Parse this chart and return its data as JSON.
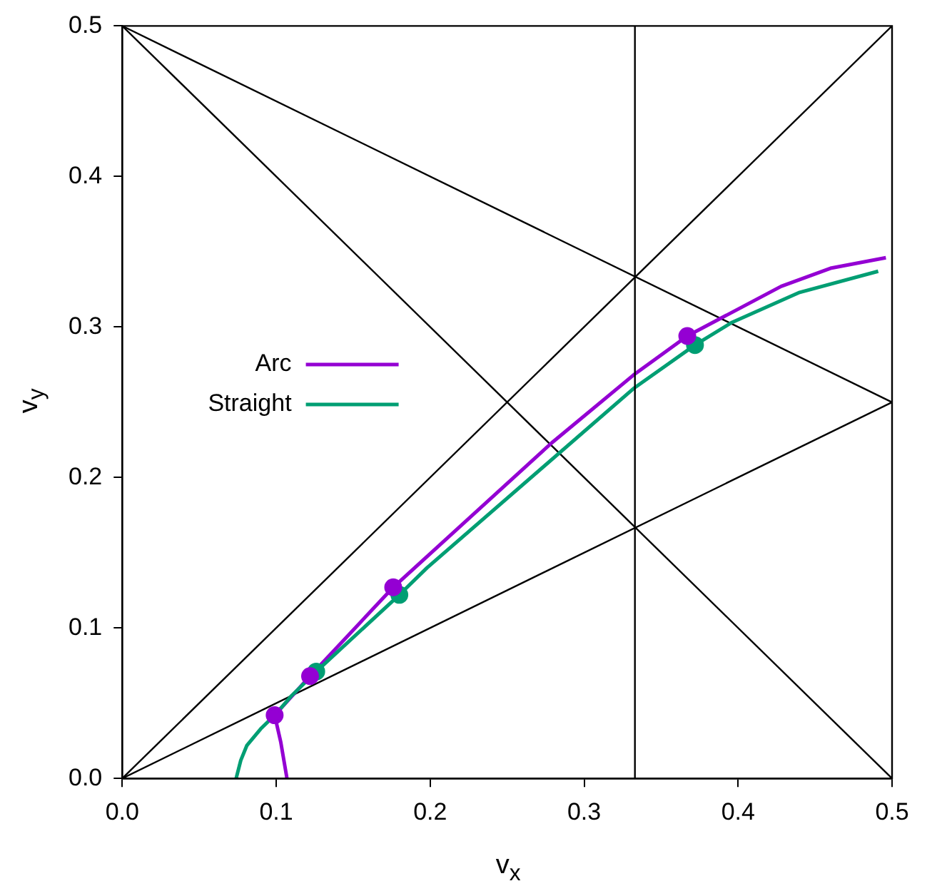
{
  "chart_data": {
    "type": "line",
    "xlabel": "v$_{x}$",
    "ylabel": "v$_{y}$",
    "xlim": [
      0,
      0.5
    ],
    "ylim": [
      0,
      0.5
    ],
    "xticks": [
      {
        "value": 0,
        "label": "0.0"
      },
      {
        "value": 0.1,
        "label": "0.1"
      },
      {
        "value": 0.2,
        "label": "0.2"
      },
      {
        "value": 0.3,
        "label": "0.3"
      },
      {
        "value": 0.4,
        "label": "0.4"
      },
      {
        "value": 0.5,
        "label": "0.5"
      }
    ],
    "yticks": [
      {
        "value": 0,
        "label": "0.0"
      },
      {
        "value": 0.1,
        "label": "0.1"
      },
      {
        "value": 0.2,
        "label": "0.2"
      },
      {
        "value": 0.3,
        "label": "0.3"
      },
      {
        "value": 0.4,
        "label": "0.4"
      },
      {
        "value": 0.5,
        "label": "0.5"
      }
    ],
    "grid": false,
    "legend": "left",
    "line_style": "solid",
    "ref_lines": [
      {
        "axis": "x",
        "value": 0.333,
        "color": "#000000"
      }
    ],
    "series": [
      {
        "color": "#000000",
        "marker": "none",
        "x": [
          0,
          0.5
        ],
        "values": [
          0,
          0.5
        ]
      },
      {
        "color": "#000000",
        "marker": "none",
        "x": [
          0,
          0.5
        ],
        "values": [
          0.5,
          0
        ]
      },
      {
        "color": "#000000",
        "marker": "none",
        "x": [
          0,
          0.5
        ],
        "values": [
          0.5,
          0.25
        ]
      },
      {
        "color": "#000000",
        "marker": "none",
        "x": [
          0,
          0.5
        ],
        "values": [
          0,
          0.25
        ]
      },
      {
        "name": "Arc",
        "color": "#9400d3",
        "marker": "none",
        "x": [
          0.107,
          0.105,
          0.103,
          0.099,
          0.122,
          0.176,
          0.19,
          0.279,
          0.332,
          0.367,
          0.428,
          0.46,
          0.496
        ],
        "values": [
          0,
          0.012,
          0.024,
          0.042,
          0.068,
          0.127,
          0.14,
          0.223,
          0.268,
          0.294,
          0.327,
          0.339,
          0.346
        ]
      },
      {
        "name": "Straight",
        "color": "#009e73",
        "marker": "none",
        "x": [
          0.074,
          0.077,
          0.081,
          0.09,
          0.1,
          0.11,
          0.126,
          0.18,
          0.198,
          0.332,
          0.372,
          0.396,
          0.44,
          0.491
        ],
        "values": [
          0,
          0.012,
          0.022,
          0.033,
          0.043,
          0.055,
          0.071,
          0.122,
          0.14,
          0.259,
          0.288,
          0.303,
          0.323,
          0.337
        ]
      },
      {
        "type": "scatter",
        "color": "#009e73",
        "marker": "circle",
        "x": [
          0.126,
          0.18,
          0.372
        ],
        "values": [
          0.071,
          0.122,
          0.288
        ]
      },
      {
        "type": "scatter",
        "color": "#9400d3",
        "marker": "circle",
        "x": [
          0.099,
          0.122,
          0.176,
          0.367
        ],
        "values": [
          0.042,
          0.068,
          0.127,
          0.294
        ]
      }
    ]
  }
}
